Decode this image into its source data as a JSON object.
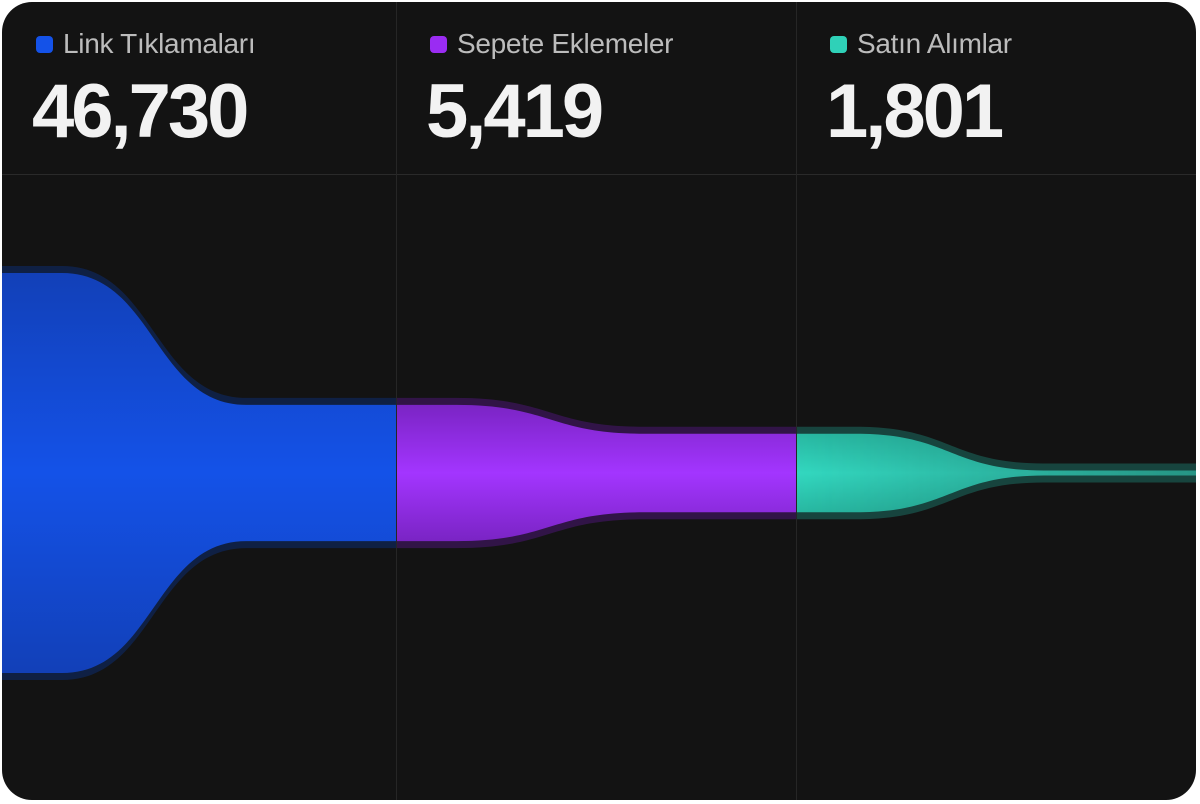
{
  "stages": [
    {
      "label": "Link Tıklamaları",
      "value": "46,730",
      "color": "#1452e8"
    },
    {
      "label": "Sepete Eklemeler",
      "value": "5,419",
      "color": "#9a2cf2"
    },
    {
      "label": "Satın Alımlar",
      "value": "1,801",
      "color": "#2fd1b8"
    }
  ],
  "chart_data": {
    "type": "area",
    "title": "",
    "categories": [
      "Link Tıklamaları",
      "Sepete Eklemeler",
      "Satın Alımlar"
    ],
    "values": [
      46730,
      5419,
      1801
    ],
    "colors": [
      "#1452e8",
      "#9a2cf2",
      "#2fd1b8"
    ]
  }
}
